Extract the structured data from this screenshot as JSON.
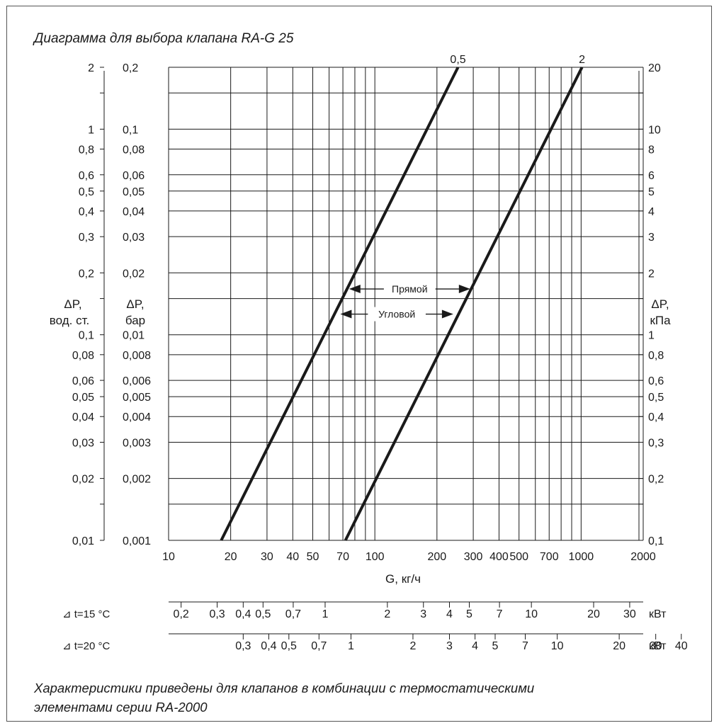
{
  "title": "Диаграмма для выбора клапана RA-G 25",
  "footnote": [
    "Характеристики приведены для клапанов в комбинации с термостатическими",
    "элементами серии RA-2000"
  ],
  "colors": {
    "line": "#1a1a1a",
    "grid": "#1a1a1a",
    "text": "#1a1a1a",
    "frame": "#555555"
  },
  "chart_data": {
    "type": "line",
    "xlabel": "G, кг/ч",
    "x_scale": "log",
    "y_scale": "log",
    "xlim": [
      10,
      2000
    ],
    "ylim": [
      0.001,
      0.2
    ],
    "x_ticks": [
      "10",
      "20",
      "30",
      "40",
      "50",
      "70",
      "100",
      "200",
      "300",
      "400",
      "500",
      "700",
      "1000",
      "2000"
    ],
    "x_tick_values": [
      10,
      20,
      30,
      40,
      50,
      70,
      100,
      200,
      300,
      400,
      500,
      700,
      1000,
      2000
    ],
    "y_axes": [
      {
        "label": [
          "ΔP,",
          "вод. ст."
        ],
        "side": "left-outer",
        "ticks": [
          "2",
          "1",
          "0,8",
          "0,6",
          "0,5",
          "0,4",
          "0,3",
          "0,2",
          "0,1",
          "0,08",
          "0,06",
          "0,05",
          "0,04",
          "0,03",
          "0,02",
          "0,01"
        ]
      },
      {
        "label": [
          "ΔP,",
          "бар"
        ],
        "side": "left",
        "ticks": [
          "0,2",
          "0,1",
          "0,08",
          "0,06",
          "0,05",
          "0,04",
          "0,03",
          "0,02",
          "0,01",
          "0,008",
          "0,006",
          "0,005",
          "0,004",
          "0,003",
          "0,002",
          "0,001"
        ]
      },
      {
        "label": [
          "ΔP,",
          "кПа"
        ],
        "side": "right",
        "ticks": [
          "20",
          "10",
          "8",
          "6",
          "5",
          "4",
          "3",
          "2",
          "1",
          "0,8",
          "0,6",
          "0,5",
          "0,4",
          "0,3",
          "0,2",
          "0,1"
        ]
      }
    ],
    "y_tick_values": [
      0.2,
      0.1,
      0.08,
      0.06,
      0.05,
      0.04,
      0.03,
      0.02,
      0.01,
      0.008,
      0.006,
      0.005,
      0.004,
      0.003,
      0.002,
      0.001
    ],
    "series": [
      {
        "name": "0,5",
        "x": [
          18,
          253
        ],
        "y": [
          0.001,
          0.2
        ]
      },
      {
        "name": "2",
        "x": [
          72,
          1010
        ],
        "y": [
          0.001,
          0.2
        ]
      }
    ],
    "annotations": [
      {
        "text": "Прямой",
        "y": 0.0167,
        "x_from": 75,
        "x_to": 290
      },
      {
        "text": "Угловой",
        "y": 0.0126,
        "x_from": 68,
        "x_to": 240
      }
    ],
    "power_scales": [
      {
        "label": "⊿ t=15 °C",
        "unit": "кВт",
        "ticks": [
          {
            "text": "0,2",
            "x": 11.5
          },
          {
            "text": "0,3",
            "x": 17.2
          },
          {
            "text": "0,4",
            "x": 23
          },
          {
            "text": "0,5",
            "x": 28.7
          },
          {
            "text": "0,7",
            "x": 40.2
          },
          {
            "text": "1",
            "x": 57.4
          },
          {
            "text": "2",
            "x": 115
          },
          {
            "text": "3",
            "x": 172
          },
          {
            "text": "4",
            "x": 230
          },
          {
            "text": "5",
            "x": 287
          },
          {
            "text": "7",
            "x": 402
          },
          {
            "text": "10",
            "x": 574
          },
          {
            "text": "20",
            "x": 1150
          },
          {
            "text": "30",
            "x": 1720
          }
        ]
      },
      {
        "label": "⊿ t=20 °C",
        "unit": "кВт",
        "ticks": [
          {
            "text": "0,3",
            "x": 23
          },
          {
            "text": "0,4",
            "x": 30.6
          },
          {
            "text": "0,5",
            "x": 38.3
          },
          {
            "text": "0,7",
            "x": 53.6
          },
          {
            "text": "1",
            "x": 76.6
          },
          {
            "text": "2",
            "x": 153
          },
          {
            "text": "3",
            "x": 230
          },
          {
            "text": "4",
            "x": 306
          },
          {
            "text": "5",
            "x": 383
          },
          {
            "text": "7",
            "x": 536
          },
          {
            "text": "10",
            "x": 766
          },
          {
            "text": "20",
            "x": 1530
          },
          {
            "text": "30",
            "x": 2300
          },
          {
            "text": "40",
            "x": 3060
          }
        ]
      }
    ]
  }
}
